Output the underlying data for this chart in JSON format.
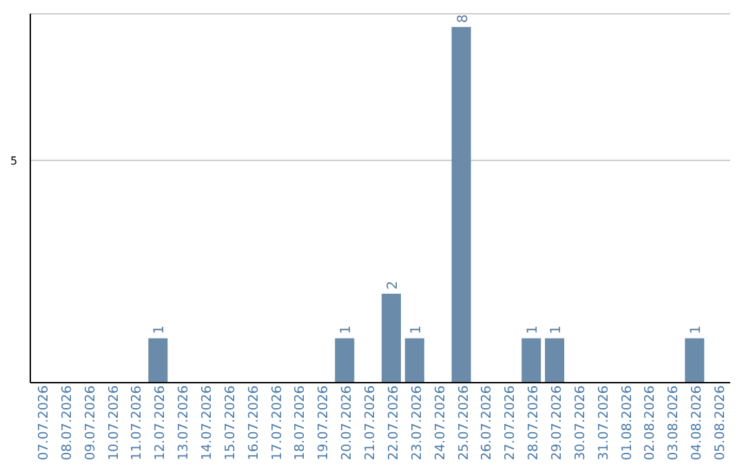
{
  "chart_data": {
    "type": "bar",
    "categories": [
      "07.07.2026",
      "08.07.2026",
      "09.07.2026",
      "10.07.2026",
      "11.07.2026",
      "12.07.2026",
      "13.07.2026",
      "14.07.2026",
      "15.07.2026",
      "16.07.2026",
      "17.07.2026",
      "18.07.2026",
      "19.07.2026",
      "20.07.2026",
      "21.07.2026",
      "22.07.2026",
      "23.07.2026",
      "24.07.2026",
      "25.07.2026",
      "26.07.2026",
      "27.07.2026",
      "28.07.2026",
      "29.07.2026",
      "30.07.2026",
      "31.07.2026",
      "01.08.2026",
      "02.08.2026",
      "03.08.2026",
      "04.08.2026",
      "05.08.2026"
    ],
    "values": [
      0,
      0,
      0,
      0,
      0,
      1,
      0,
      0,
      0,
      0,
      0,
      0,
      0,
      1,
      0,
      2,
      1,
      0,
      8,
      0,
      0,
      1,
      1,
      0,
      0,
      0,
      0,
      0,
      1,
      0
    ],
    "value_labels": [
      null,
      null,
      null,
      null,
      null,
      "1",
      null,
      null,
      null,
      null,
      null,
      null,
      null,
      "1",
      null,
      "2",
      "1",
      null,
      "8",
      null,
      null,
      "1",
      "1",
      null,
      null,
      null,
      null,
      null,
      "1",
      null
    ],
    "color": "#6b8bab",
    "ylim": [
      0,
      8.3
    ],
    "yticks": [
      5
    ],
    "grid": "y"
  }
}
